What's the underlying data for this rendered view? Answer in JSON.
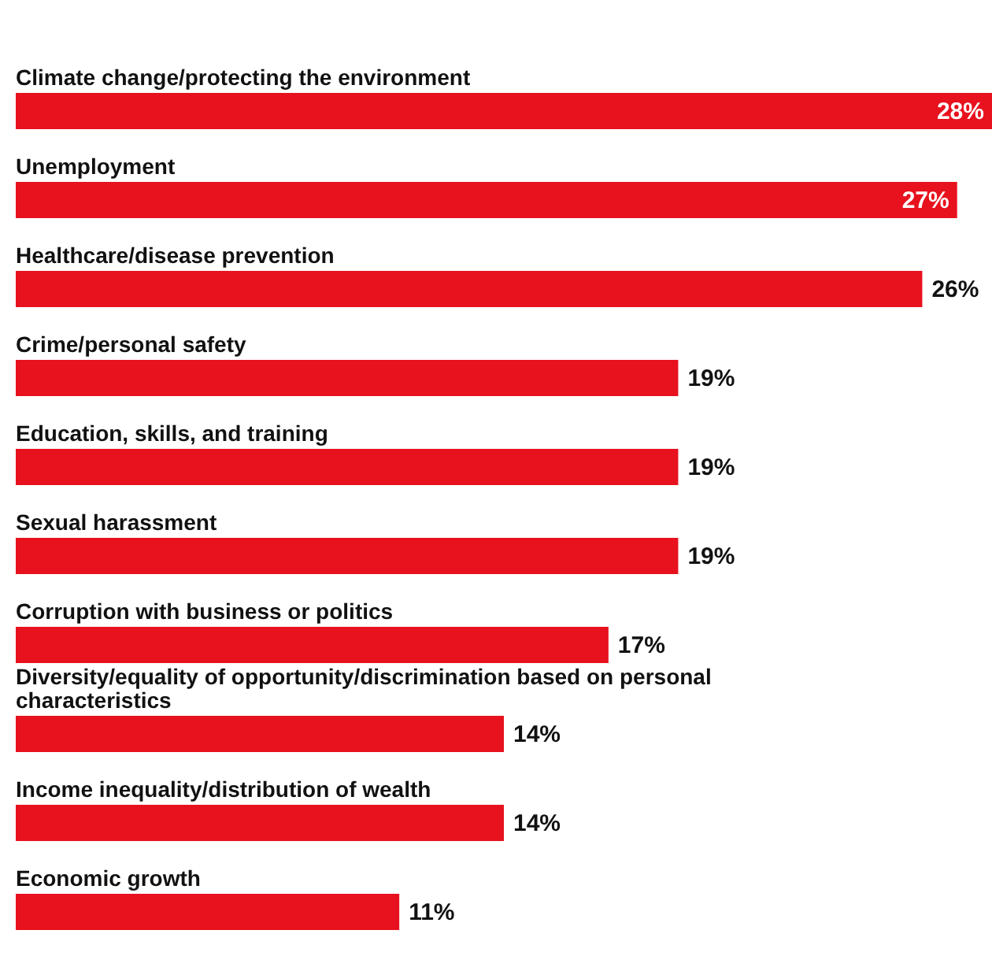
{
  "chart_data": {
    "type": "bar",
    "orientation": "horizontal",
    "categories": [
      "Climate change/protecting the environment",
      "Unemployment",
      "Healthcare/disease prevention",
      "Crime/personal safety",
      "Education, skills, and training",
      "Sexual harassment",
      "Corruption with business or politics",
      "Diversity/equality of opportunity/discrimination based on personal characteristics",
      "Income inequality/distribution of wealth",
      "Economic growth"
    ],
    "values": [
      28,
      27,
      26,
      19,
      19,
      19,
      17,
      14,
      14,
      11
    ],
    "value_labels": [
      "28%",
      "27%",
      "26%",
      "19%",
      "19%",
      "19%",
      "17%",
      "14%",
      "14%",
      "11%"
    ],
    "color": "#e8111e",
    "grid": false,
    "legend": false,
    "tick_labels": false
  }
}
